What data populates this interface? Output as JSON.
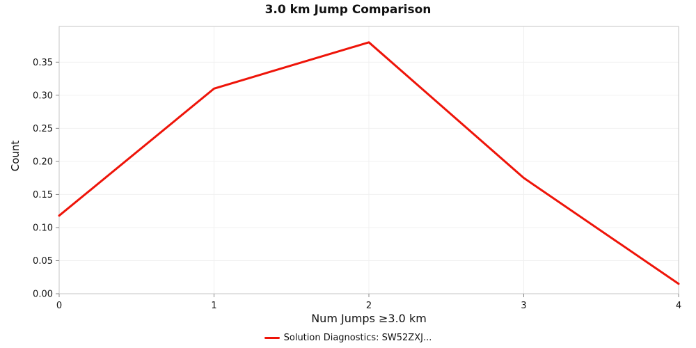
{
  "chart": {
    "title": "3.0 km Jump Comparison",
    "xlabel": "Num Jumps ≥3.0 km",
    "ylabel": "Count",
    "legend_label": "Solution Diagnostics: SW52ZXJ...",
    "line_color": "#ee1409",
    "grid_color": "#f0f0f0",
    "border_color": "#c6c6c6",
    "tick_color": "#888888"
  },
  "chart_data": {
    "type": "line",
    "title": "3.0 km Jump Comparison",
    "xlabel": "Num Jumps ≥3.0 km",
    "ylabel": "Count",
    "x": [
      0,
      1,
      2,
      3,
      4
    ],
    "values": [
      0.118,
      0.31,
      0.38,
      0.175,
      0.015
    ],
    "series": [
      {
        "name": "Solution Diagnostics: SW52ZXJ...",
        "color": "#ee1409",
        "x": [
          0,
          1,
          2,
          3,
          4
        ],
        "values": [
          0.118,
          0.31,
          0.38,
          0.175,
          0.015
        ]
      }
    ],
    "xticks": [
      0,
      1,
      2,
      3,
      4
    ],
    "yticks": [
      0.0,
      0.05,
      0.1,
      0.15,
      0.2,
      0.25,
      0.3,
      0.35
    ],
    "xlim": [
      0,
      4
    ],
    "ylim": [
      0,
      0.404
    ],
    "grid": true,
    "legend_position": "bottom"
  }
}
